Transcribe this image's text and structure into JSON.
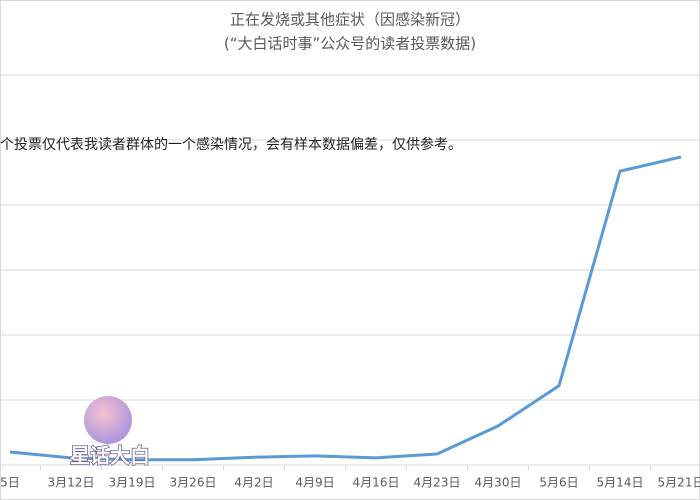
{
  "chart_data": {
    "type": "line",
    "title": "正在发烧或其他症状（因感染新冠）",
    "subtitle": "(“大白话时事”公众号的读者投票数据)",
    "annotation": "个投票仅代表我读者群体的一个感染情况，会有样本数据偏差，仅供参考。",
    "watermark": "星话大白",
    "categories": [
      "5日",
      "3月12日",
      "3月19日",
      "3月26日",
      "4月2日",
      "4月9日",
      "4月16日",
      "4月23日",
      "4月30日",
      "5月6日",
      "5月14日",
      "5月21日"
    ],
    "series": [
      {
        "color": "#5b9bd5",
        "values": [
          0.2,
          0.11,
          0.08,
          0.08,
          0.12,
          0.14,
          0.11,
          0.17,
          0.6,
          1.22,
          4.52,
          4.74
        ]
      }
    ],
    "ylim": [
      0,
      6
    ],
    "yticks": [
      0,
      1,
      2,
      3,
      4,
      5,
      6
    ],
    "grid": true,
    "tick_labels": false
  }
}
